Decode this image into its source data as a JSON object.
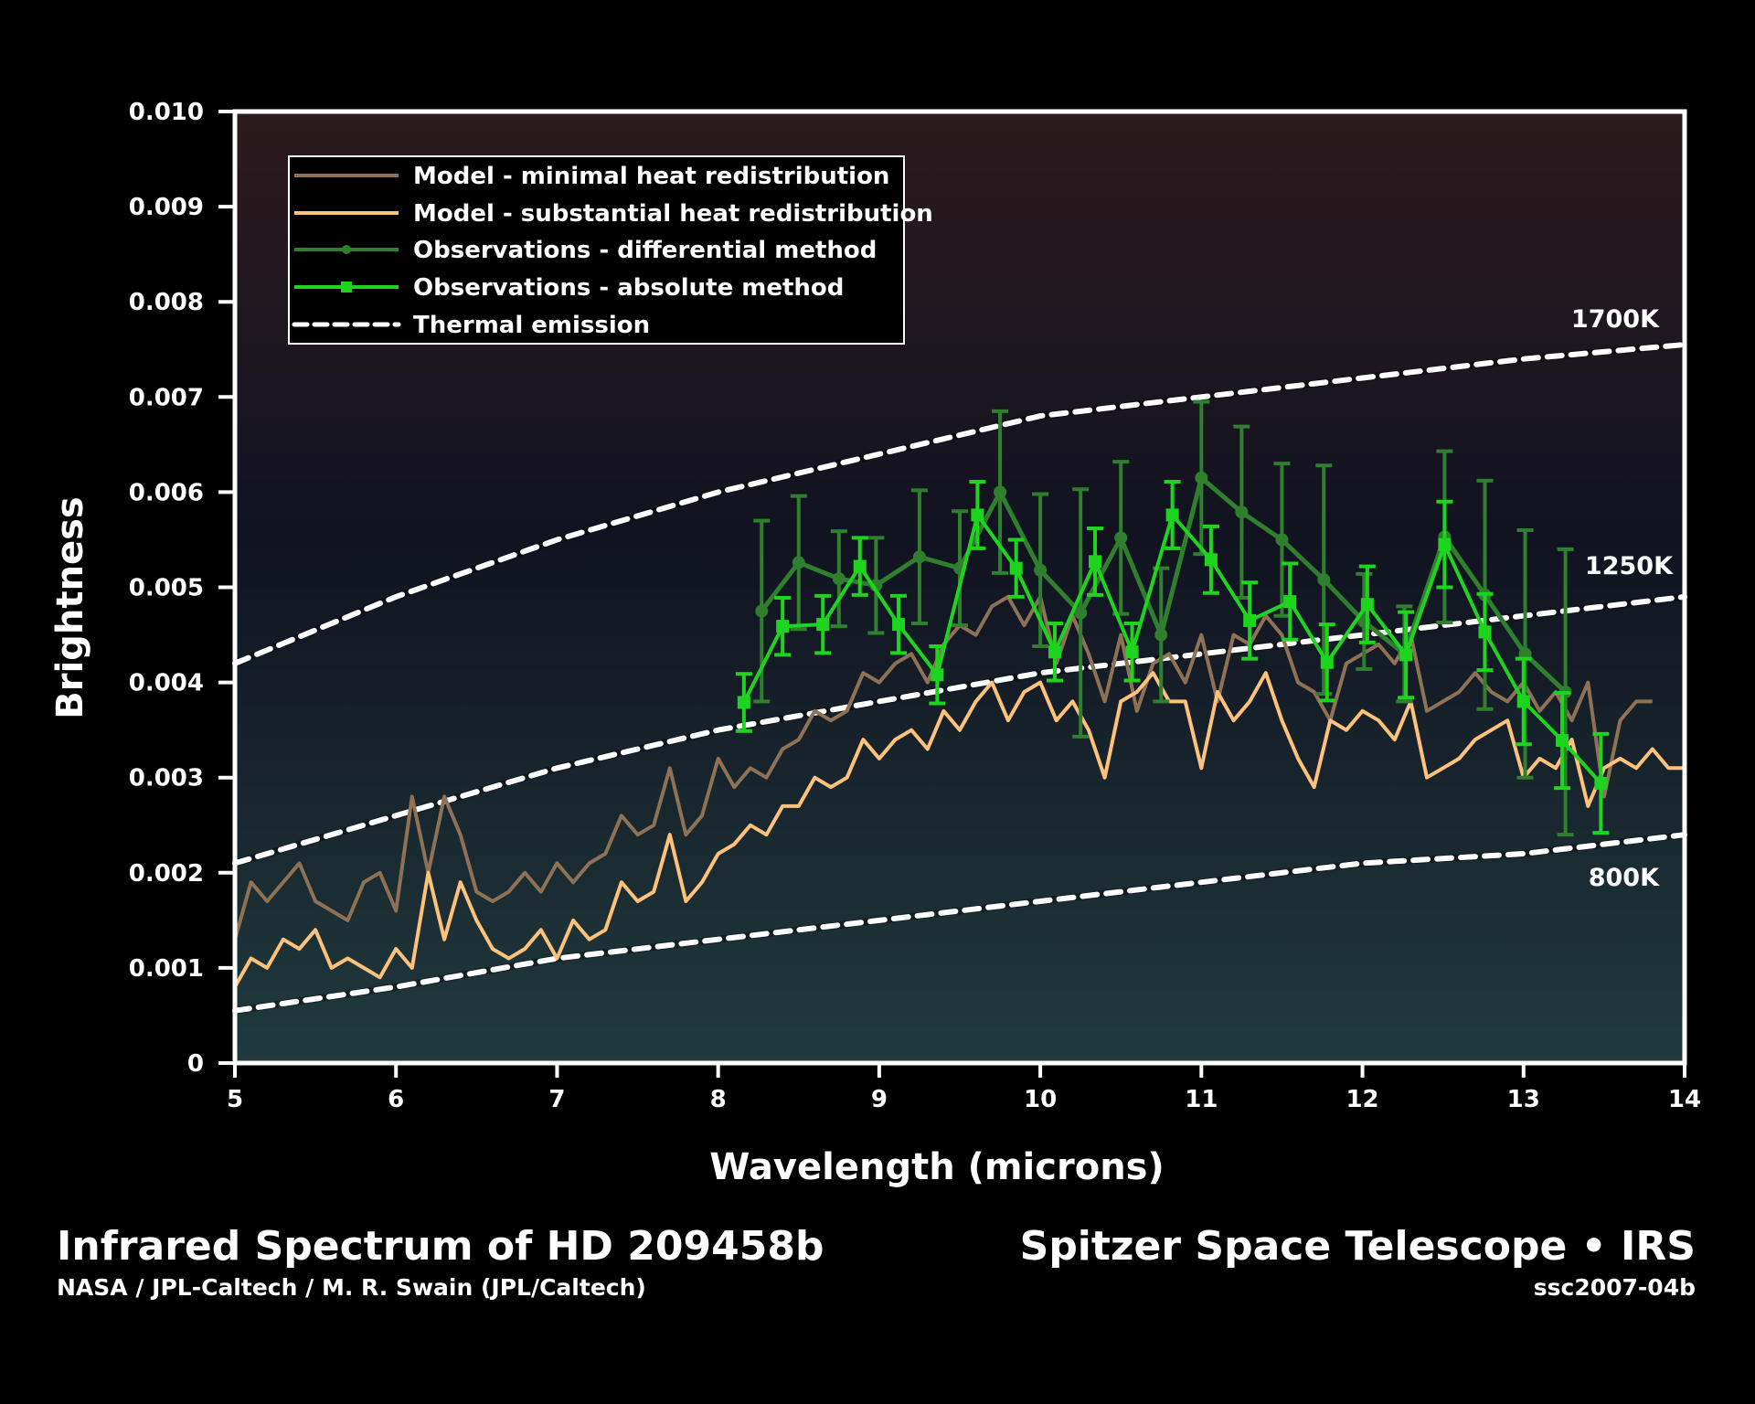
{
  "chart_data": {
    "type": "line",
    "title": "Infrared Spectrum of HD 209458b",
    "xlabel": "Wavelength (microns)",
    "ylabel": "Brightness",
    "xlim": [
      5,
      14
    ],
    "ylim": [
      0,
      0.01
    ],
    "xticks": [
      "5",
      "6",
      "7",
      "8",
      "9",
      "10",
      "11",
      "12",
      "13",
      "14"
    ],
    "yticks": [
      "0",
      "0.001",
      "0.002",
      "0.003",
      "0.004",
      "0.005",
      "0.006",
      "0.007",
      "0.008",
      "0.009",
      "0.010"
    ],
    "grid": false,
    "legend_position": "top-left",
    "legend": [
      "Model - minimal heat redistribution",
      "Model - substantial heat redistribution",
      "Observations - differential method",
      "Observations - absolute method",
      "Thermal emission"
    ],
    "colors": {
      "minimal": "#8f7256",
      "substantial": "#ffc27a",
      "differential": "#2f7f2f",
      "absolute": "#1fd41f",
      "thermal": "#ffffff"
    },
    "series": [
      {
        "name": "Model - minimal heat redistribution",
        "x_start": 5.0,
        "x_step": 0.1,
        "values": [
          0.0013,
          0.0019,
          0.0017,
          0.0019,
          0.0021,
          0.0017,
          0.0016,
          0.0015,
          0.0019,
          0.002,
          0.0016,
          0.0028,
          0.002,
          0.0028,
          0.0024,
          0.0018,
          0.0017,
          0.0018,
          0.002,
          0.0018,
          0.0021,
          0.0019,
          0.0021,
          0.0022,
          0.0026,
          0.0024,
          0.0025,
          0.0031,
          0.0024,
          0.0026,
          0.0032,
          0.0029,
          0.0031,
          0.003,
          0.0033,
          0.0034,
          0.0037,
          0.0036,
          0.0037,
          0.0041,
          0.004,
          0.0042,
          0.0043,
          0.004,
          0.0044,
          0.0046,
          0.0045,
          0.0048,
          0.0049,
          0.0046,
          0.0049,
          0.0042,
          0.0047,
          0.0043,
          0.0038,
          0.0045,
          0.0037,
          0.0042,
          0.0043,
          0.004,
          0.0045,
          0.0038,
          0.0045,
          0.0044,
          0.0047,
          0.0045,
          0.004,
          0.0039,
          0.0036,
          0.0042,
          0.0043,
          0.0044,
          0.0042,
          0.0045,
          0.0037,
          0.0038,
          0.0039,
          0.0041,
          0.0039,
          0.0038,
          0.004,
          0.0037,
          0.0039,
          0.0036,
          0.004,
          0.0028,
          0.0036,
          0.0038,
          0.0038
        ]
      },
      {
        "name": "Model - substantial heat redistribution",
        "x_start": 5.0,
        "x_step": 0.1,
        "values": [
          0.0008,
          0.0011,
          0.001,
          0.0013,
          0.0012,
          0.0014,
          0.001,
          0.0011,
          0.001,
          0.0009,
          0.0012,
          0.001,
          0.002,
          0.0013,
          0.0019,
          0.0015,
          0.0012,
          0.0011,
          0.0012,
          0.0014,
          0.0011,
          0.0015,
          0.0013,
          0.0014,
          0.0019,
          0.0017,
          0.0018,
          0.0024,
          0.0017,
          0.0019,
          0.0022,
          0.0023,
          0.0025,
          0.0024,
          0.0027,
          0.0027,
          0.003,
          0.0029,
          0.003,
          0.0034,
          0.0032,
          0.0034,
          0.0035,
          0.0033,
          0.0037,
          0.0035,
          0.0038,
          0.004,
          0.0036,
          0.0039,
          0.004,
          0.0036,
          0.0038,
          0.0035,
          0.003,
          0.0038,
          0.0039,
          0.0041,
          0.0038,
          0.0038,
          0.0031,
          0.0039,
          0.0036,
          0.0038,
          0.0041,
          0.0036,
          0.0032,
          0.0029,
          0.0036,
          0.0035,
          0.0037,
          0.0036,
          0.0034,
          0.0038,
          0.003,
          0.0031,
          0.0032,
          0.0034,
          0.0035,
          0.0036,
          0.003,
          0.0032,
          0.0031,
          0.0034,
          0.0027,
          0.0031,
          0.0032,
          0.0031,
          0.0033,
          0.0031,
          0.0031
        ]
      },
      {
        "name": "Observations - differential method",
        "x": [
          8.27,
          8.5,
          8.75,
          8.98,
          9.25,
          9.5,
          9.75,
          10.0,
          10.25,
          10.5,
          10.75,
          11.0,
          11.25,
          11.5,
          11.76,
          12.01,
          12.26,
          12.51,
          12.76,
          13.01,
          13.26
        ],
        "y": [
          0.00475,
          0.00526,
          0.00509,
          0.00502,
          0.00532,
          0.0052,
          0.006,
          0.00518,
          0.00473,
          0.00552,
          0.0045,
          0.00615,
          0.00579,
          0.0055,
          0.00508,
          0.00464,
          0.0043,
          0.00553,
          0.00492,
          0.0043,
          0.0039
        ],
        "err": [
          0.00095,
          0.0007,
          0.0005,
          0.0005,
          0.0007,
          0.0006,
          0.00085,
          0.0008,
          0.0013,
          0.0008,
          0.0007,
          0.0008,
          0.0009,
          0.0008,
          0.0012,
          0.0005,
          0.0005,
          0.0009,
          0.0012,
          0.0013,
          0.0015
        ]
      },
      {
        "name": "Observations - absolute method",
        "x": [
          8.16,
          8.4,
          8.65,
          8.88,
          9.12,
          9.36,
          9.61,
          9.85,
          10.09,
          10.34,
          10.57,
          10.82,
          11.06,
          11.3,
          11.55,
          11.78,
          12.03,
          12.27,
          12.51,
          12.76,
          13.0,
          13.24,
          13.48
        ],
        "y": [
          0.00379,
          0.00459,
          0.00461,
          0.00522,
          0.00461,
          0.00408,
          0.00576,
          0.0052,
          0.00432,
          0.00527,
          0.00432,
          0.00576,
          0.00529,
          0.00465,
          0.00485,
          0.00421,
          0.00482,
          0.00429,
          0.00545,
          0.00453,
          0.0038,
          0.00339,
          0.00294
        ],
        "err": [
          0.0003,
          0.0003,
          0.0003,
          0.0003,
          0.0003,
          0.0003,
          0.00035,
          0.0003,
          0.0003,
          0.00035,
          0.0003,
          0.00035,
          0.00035,
          0.0004,
          0.0004,
          0.0004,
          0.0004,
          0.00045,
          0.00045,
          0.0004,
          0.00045,
          0.0005,
          0.00052
        ]
      },
      {
        "name": "Thermal emission 1700K",
        "label": "1700K",
        "x": [
          5,
          6,
          7,
          8,
          9,
          10,
          11,
          12,
          13,
          14
        ],
        "values": [
          0.0042,
          0.0049,
          0.0055,
          0.006,
          0.0064,
          0.0068,
          0.007,
          0.0072,
          0.0074,
          0.00755
        ]
      },
      {
        "name": "Thermal emission 1250K",
        "label": "1250K",
        "x": [
          5,
          6,
          7,
          8,
          9,
          10,
          11,
          12,
          13,
          14
        ],
        "values": [
          0.0021,
          0.0026,
          0.0031,
          0.0035,
          0.0038,
          0.0041,
          0.0043,
          0.0045,
          0.0047,
          0.0049
        ]
      },
      {
        "name": "Thermal emission 800K",
        "label": "800K",
        "x": [
          5,
          6,
          7,
          8,
          9,
          10,
          11,
          12,
          13,
          14
        ],
        "values": [
          0.00055,
          0.0008,
          0.0011,
          0.0013,
          0.0015,
          0.0017,
          0.0019,
          0.0021,
          0.0022,
          0.0024
        ]
      }
    ]
  },
  "footer": {
    "title": "Infrared Spectrum of HD 209458b",
    "credit": "NASA / JPL-Caltech / M. R. Swain (JPL/Caltech)",
    "mission": "Spitzer Space Telescope • IRS",
    "id": "ssc2007-04b"
  }
}
